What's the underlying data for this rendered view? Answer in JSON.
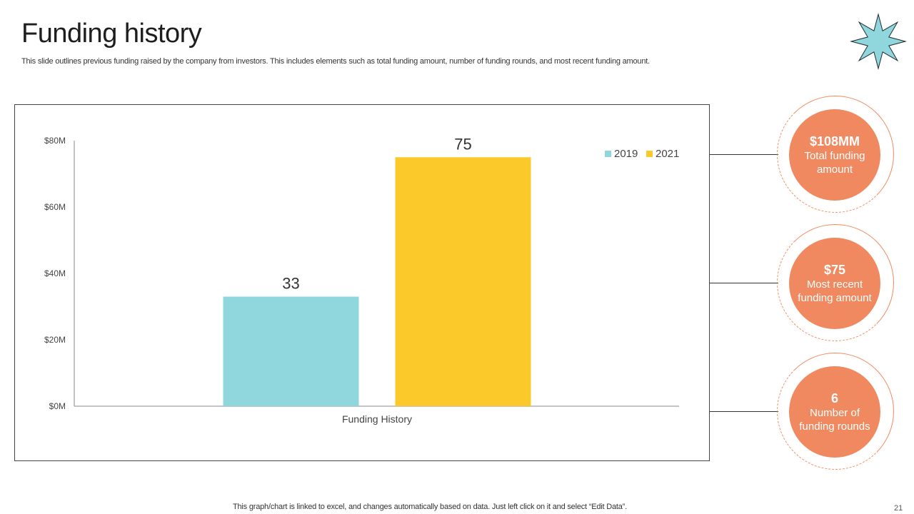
{
  "slide": {
    "title": "Funding history",
    "subtitle": "This slide outlines previous funding raised by the company from investors. This includes elements such as total funding amount, number of funding rounds, and most recent funding amount.",
    "footer": "This graph/chart is linked to excel,  and changes automatically based on data. Just left click on it and select “Edit Data”.",
    "page_number": "21"
  },
  "stats": [
    {
      "value": "$108MM",
      "label": "Total funding amount"
    },
    {
      "value": "$75",
      "label": "Most recent funding amount"
    },
    {
      "value": "6",
      "label": "Number of funding rounds"
    }
  ],
  "colors": {
    "series_2019": "#8fd7dd",
    "series_2021": "#fcc92a",
    "stat_fill": "#f0895f",
    "star": "#8fd7dd"
  },
  "chart_data": {
    "type": "bar",
    "categories": [
      "Funding History"
    ],
    "series": [
      {
        "name": "2019",
        "values": [
          33
        ],
        "data_labels": [
          "33"
        ]
      },
      {
        "name": "2021",
        "values": [
          75
        ],
        "data_labels": [
          "75"
        ]
      }
    ],
    "ylim": [
      0,
      80
    ],
    "yticks": [
      0,
      20,
      40,
      60,
      80
    ],
    "ytick_labels": [
      "$0M",
      "$20M",
      "$40M",
      "$60M",
      "$80M"
    ],
    "grid": false,
    "legend_position": "top-right"
  }
}
